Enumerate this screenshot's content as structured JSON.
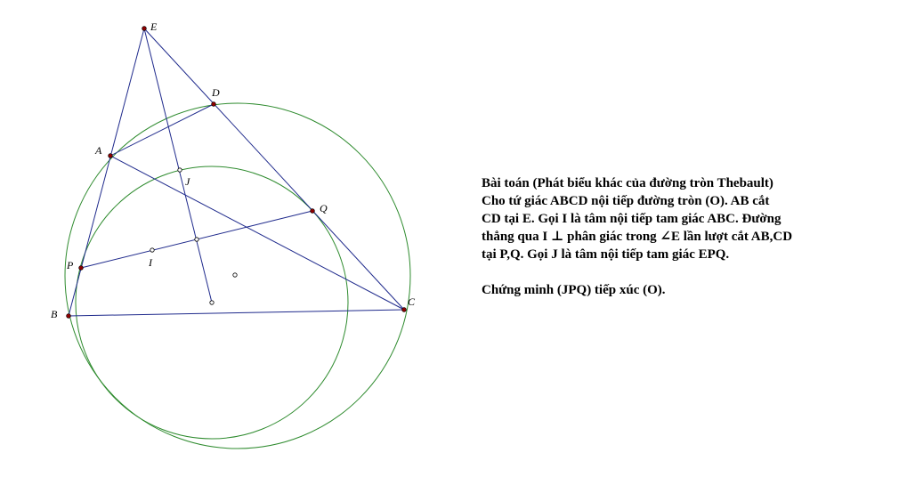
{
  "colors": {
    "segment": "#1f2a8c",
    "circle": "#2e8b2e",
    "point": "#8b0000",
    "text": "#000000"
  },
  "diagram": {
    "labels": {
      "E": "E",
      "D": "D",
      "A": "A",
      "J": "J",
      "Q": "Q",
      "P": "P",
      "I": "I",
      "B": "B",
      "C": "C"
    }
  },
  "problem": {
    "line1": "Bài toán (Phát biểu khác của đường tròn Thebault)",
    "line2": "Cho tứ giác ABCD nội tiếp đường tròn (O). AB cắt",
    "line3": "CD tại E. Gọi I là tâm nội tiếp tam giác ABC. Đường",
    "line4": "thẳng qua I ⊥ phân giác trong ∠E lần lượt cắt AB,CD",
    "line5": "tại P,Q. Gọi J là tâm nội tiếp tam giác EPQ.",
    "conclusion": "Chứng minh (JPQ) tiếp xúc (O)."
  }
}
